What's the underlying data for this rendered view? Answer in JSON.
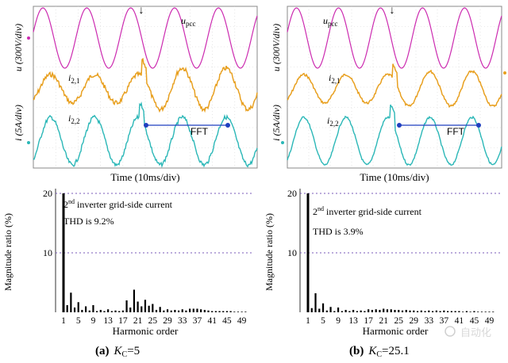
{
  "panels": [
    {
      "caption_letter": "(a)",
      "caption_param_label": "K",
      "caption_param_sub": "C",
      "caption_param_value": "=5",
      "scope": {
        "xlabel": "Time (10ms/div)",
        "ylabel_upper": "u (300V/div)",
        "ylabel_lower": "i (5A/div)",
        "trace_labels": {
          "u": "u",
          "u_sub": "pcc",
          "i1": "i",
          "i1_sub": "2,1",
          "i2": "i",
          "i2_sub": "2,2"
        },
        "fft_label": "FFT",
        "event_marker": "↓",
        "colors": {
          "u": "#cc2bb0",
          "i1": "#e8a020",
          "i2": "#2bb7b7",
          "fft": "#1f3fbf"
        }
      },
      "chart_data": {
        "type": "bar",
        "title": "",
        "xlabel": "Harmonic order",
        "ylabel": "Magnitude ratio (%)",
        "ylim": [
          0,
          20
        ],
        "yticks": [
          10,
          20
        ],
        "gridlines": [
          10,
          20
        ],
        "xtick_labels": [
          "1",
          "5",
          "9",
          "13",
          "17",
          "21",
          "25",
          "29",
          "33",
          "37",
          "41",
          "45",
          "49"
        ],
        "annotation": {
          "line1_pre": "2",
          "line1_sup": "nd",
          "line1_post": " inverter grid-side current",
          "line2": "THD is 9.2%"
        },
        "harmonics": [
          1,
          2,
          3,
          4,
          5,
          6,
          7,
          8,
          9,
          10,
          11,
          12,
          13,
          14,
          15,
          16,
          17,
          18,
          19,
          20,
          21,
          22,
          23,
          24,
          25,
          26,
          27,
          28,
          29,
          30,
          31,
          32,
          33,
          34,
          35,
          36,
          37,
          38,
          39,
          40,
          41,
          42,
          43,
          44,
          45,
          46,
          47,
          48,
          49,
          50
        ],
        "values": [
          20,
          1.2,
          3.3,
          0.8,
          1.7,
          0.4,
          1.0,
          0.3,
          1.2,
          0.2,
          0.4,
          0.2,
          0.5,
          0.2,
          0.3,
          0.2,
          0.3,
          2.0,
          0.8,
          3.8,
          1.8,
          1.0,
          2.1,
          1.1,
          1.4,
          0.4,
          0.9,
          0.3,
          0.5,
          0.3,
          0.4,
          0.3,
          0.5,
          0.3,
          0.6,
          0.6,
          0.6,
          0.5,
          0.4,
          0.3,
          0.2,
          0.2,
          0.2,
          0.2,
          0.2,
          0.2,
          0.1,
          0.1,
          0.1,
          0.1
        ]
      }
    },
    {
      "caption_letter": "(b)",
      "caption_param_label": "K",
      "caption_param_sub": "C",
      "caption_param_value": "=25.1",
      "scope": {
        "xlabel": "Time (10ms/div)",
        "ylabel_upper": "u (300V/div)",
        "ylabel_lower": "i (5A/div)",
        "trace_labels": {
          "u": "u",
          "u_sub": "pcc",
          "i1": "i",
          "i1_sub": "2,1",
          "i2": "i",
          "i2_sub": "2,2"
        },
        "fft_label": "FFT",
        "event_marker": "↓",
        "colors": {
          "u": "#cc2bb0",
          "i1": "#e8a020",
          "i2": "#2bb7b7",
          "fft": "#1f3fbf"
        }
      },
      "chart_data": {
        "type": "bar",
        "title": "",
        "xlabel": "Harmonic order",
        "ylabel": "Magnitude ratio (%)",
        "ylim": [
          0,
          20
        ],
        "yticks": [
          10,
          20
        ],
        "gridlines": [
          10,
          20
        ],
        "xtick_labels": [
          "1",
          "5",
          "9",
          "13",
          "17",
          "21",
          "25",
          "29",
          "33",
          "37",
          "41",
          "45",
          "49"
        ],
        "annotation": {
          "line1_pre": "2",
          "line1_sup": "nd",
          "line1_post": " inverter grid-side current",
          "line2": "THD is 3.9%"
        },
        "harmonics": [
          1,
          2,
          3,
          4,
          5,
          6,
          7,
          8,
          9,
          10,
          11,
          12,
          13,
          14,
          15,
          16,
          17,
          18,
          19,
          20,
          21,
          22,
          23,
          24,
          25,
          26,
          27,
          28,
          29,
          30,
          31,
          32,
          33,
          34,
          35,
          36,
          37,
          38,
          39,
          40,
          41,
          42,
          43,
          44,
          45,
          46,
          47,
          48,
          49,
          50
        ],
        "values": [
          20,
          0.7,
          3.2,
          0.6,
          1.5,
          0.3,
          0.9,
          0.2,
          0.8,
          0.2,
          0.4,
          0.2,
          0.4,
          0.2,
          0.3,
          0.2,
          0.5,
          0.4,
          0.5,
          0.4,
          0.6,
          0.5,
          0.5,
          0.4,
          0.4,
          0.3,
          0.4,
          0.3,
          0.3,
          0.2,
          0.3,
          0.2,
          0.3,
          0.2,
          0.3,
          0.2,
          0.3,
          0.2,
          0.2,
          0.2,
          0.2,
          0.1,
          0.2,
          0.1,
          0.2,
          0.1,
          0.1,
          0.1,
          0.1,
          0.1
        ]
      }
    }
  ],
  "watermark": "自动化"
}
